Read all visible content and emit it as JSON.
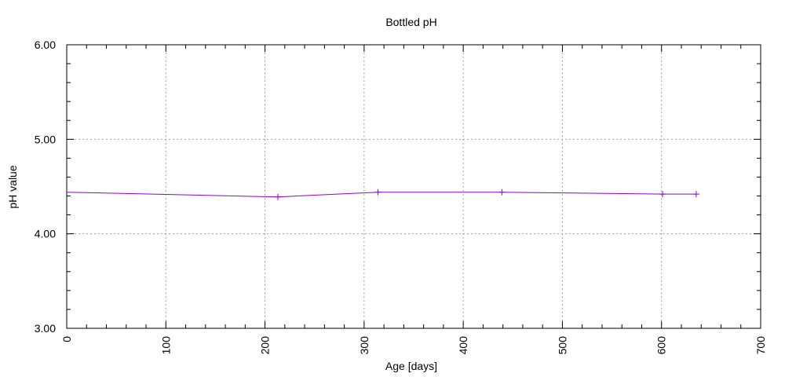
{
  "chart_data": {
    "type": "line",
    "title": "Bottled pH",
    "xlabel": "Age [days]",
    "ylabel": "pH value",
    "xlim": [
      0,
      700
    ],
    "ylim": [
      3,
      6
    ],
    "x_ticks": [
      "0",
      "100",
      "200",
      "300",
      "400",
      "500",
      "600",
      "700"
    ],
    "y_ticks": [
      "3.00",
      "4.00",
      "5.00",
      "6.00"
    ],
    "grid": true,
    "line_color": "#9400d3",
    "series": [
      {
        "x": [
          0,
          213,
          314,
          439,
          601,
          635
        ],
        "values": [
          4.44,
          4.39,
          4.44,
          4.44,
          4.42,
          4.42
        ]
      }
    ]
  }
}
